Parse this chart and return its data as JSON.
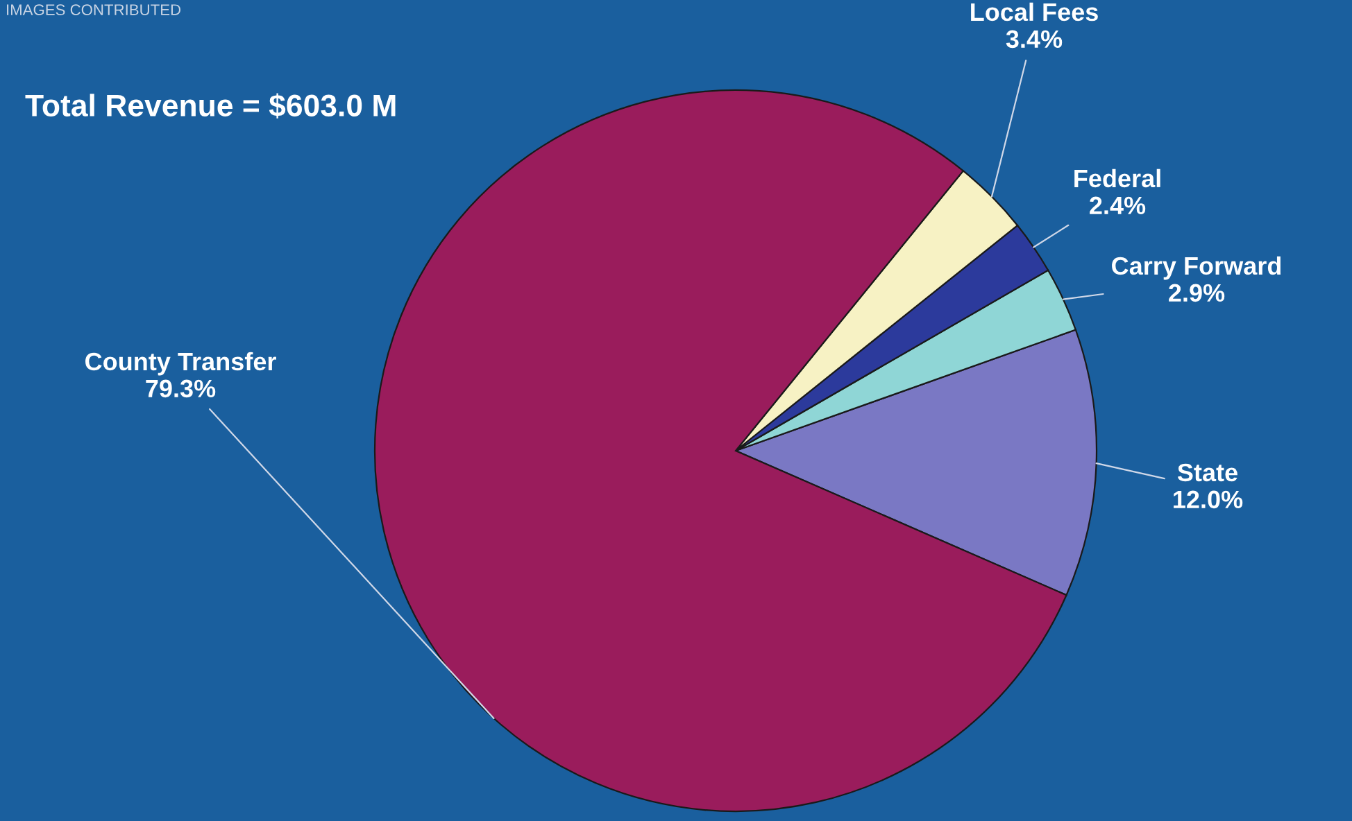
{
  "chart_data": {
    "type": "pie",
    "title": "Total Revenue = $603.0 M",
    "categories": [
      "State",
      "Carry Forward",
      "Federal",
      "Local Fees",
      "County Transfer"
    ],
    "values": [
      12.0,
      2.9,
      2.4,
      3.4,
      79.3
    ],
    "value_labels": [
      "12.0%",
      "2.9%",
      "2.4%",
      "3.4%",
      "79.3%"
    ],
    "colors": [
      "#7a78c4",
      "#8fd6d6",
      "#2c3a9c",
      "#f7f2c4",
      "#9a1c5c"
    ],
    "annotations": [
      "IMAGES CONTRIBUTED"
    ],
    "legend": false
  }
}
